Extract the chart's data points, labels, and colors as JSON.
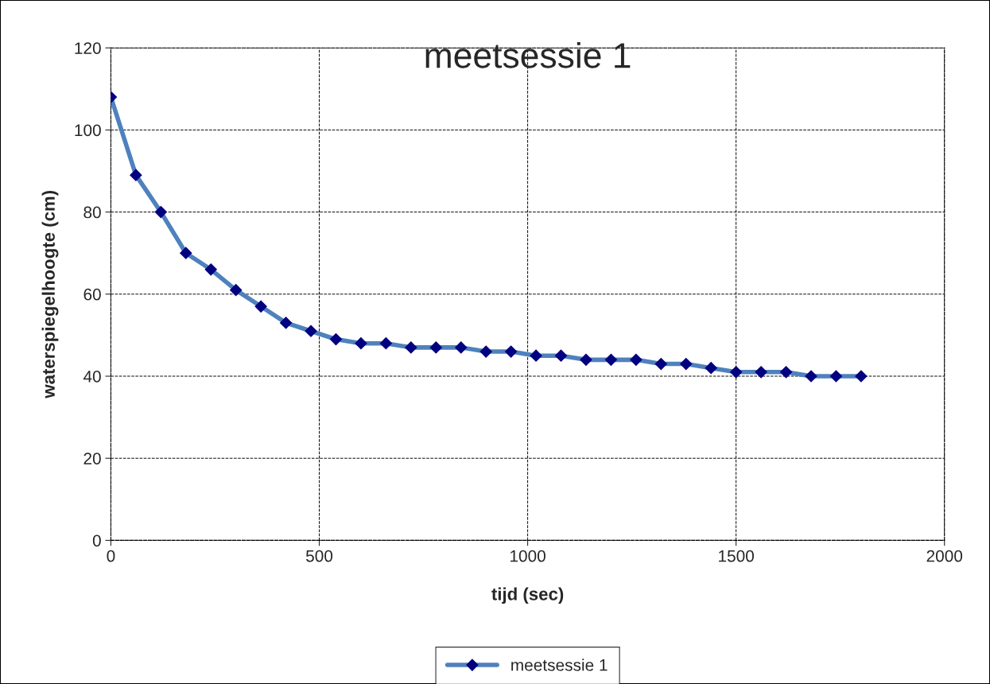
{
  "chart_data": {
    "type": "line",
    "title": "meetsessie 1",
    "xlabel": "tijd (sec)",
    "ylabel": "waterspiegelhoogte (cm)",
    "x": [
      0,
      60,
      120,
      180,
      240,
      300,
      360,
      420,
      480,
      540,
      600,
      660,
      720,
      780,
      840,
      900,
      960,
      1020,
      1080,
      1140,
      1200,
      1260,
      1320,
      1380,
      1440,
      1500,
      1560,
      1620,
      1680,
      1740,
      1800
    ],
    "series": [
      {
        "name": "meetsessie 1",
        "color": "#4f81bd",
        "values": [
          108,
          89,
          80,
          70,
          66,
          61,
          57,
          53,
          51,
          49,
          48,
          48,
          47,
          47,
          47,
          46,
          46,
          45,
          45,
          44,
          44,
          44,
          43,
          43,
          42,
          41,
          41,
          41,
          40,
          40,
          40
        ]
      }
    ],
    "xlim": [
      0,
      2000
    ],
    "xticks": [
      0,
      500,
      1000,
      1500,
      2000
    ],
    "ylim": [
      0,
      120
    ],
    "yticks": [
      0,
      20,
      40,
      60,
      80,
      100,
      120
    ],
    "grid": true,
    "legend": "bottom",
    "marker": "diamond",
    "line_style": "solid"
  }
}
